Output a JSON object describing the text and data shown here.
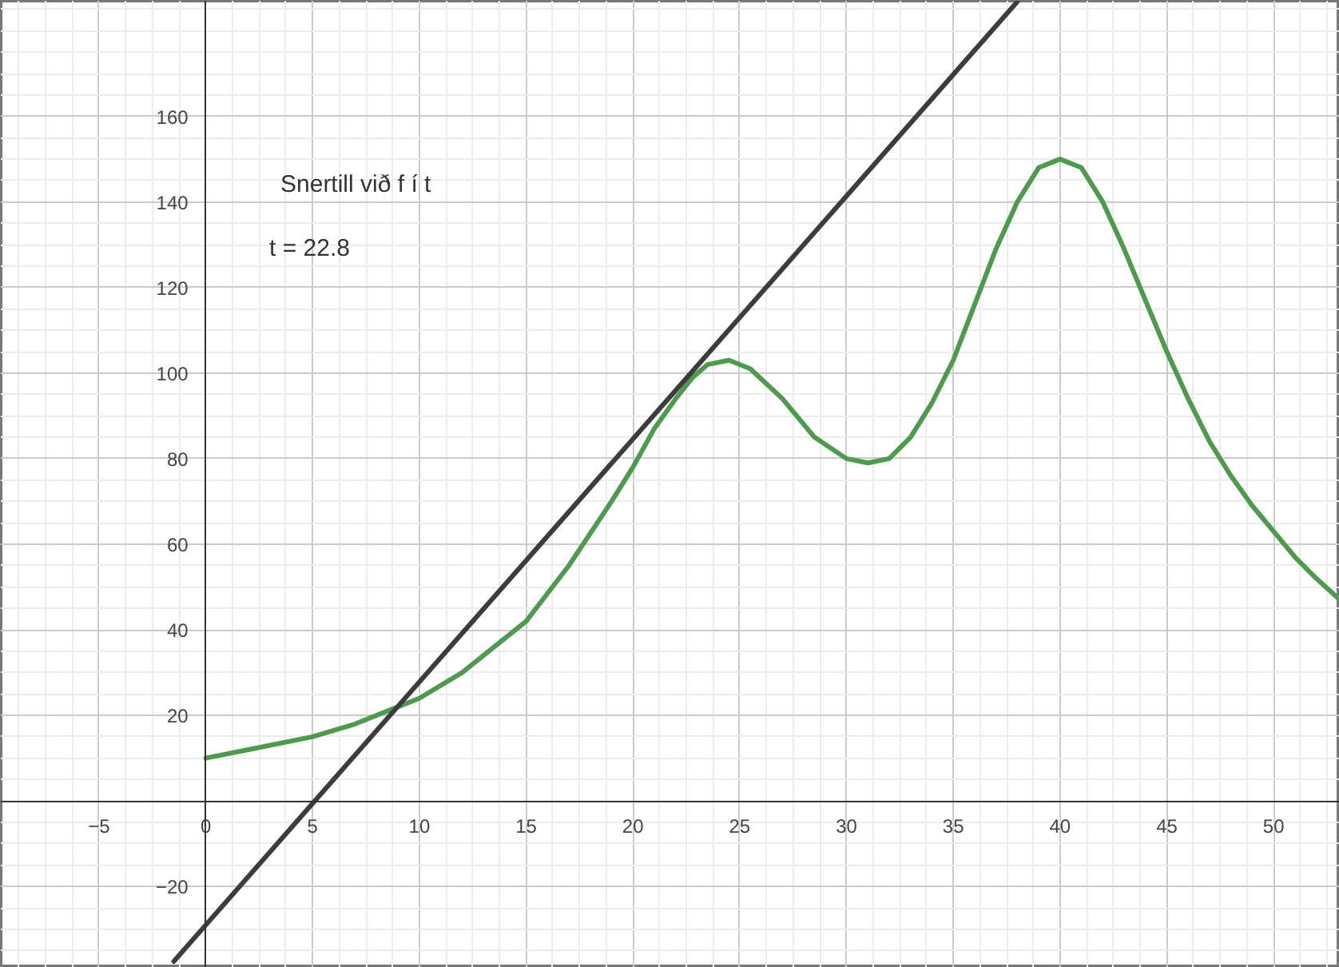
{
  "chart_data": {
    "type": "line",
    "xlim": [
      -9.6,
      53.1
    ],
    "ylim": [
      -39,
      187
    ],
    "xticks": [
      {
        "value": -5,
        "label": "−5"
      },
      0,
      5,
      10,
      15,
      20,
      25,
      30,
      35,
      40,
      45,
      50
    ],
    "yticks": [
      {
        "value": -20,
        "label": "−20"
      },
      20,
      40,
      60,
      80,
      100,
      120,
      140,
      160
    ],
    "grid": true,
    "annotations": [
      "Snertill við f í t",
      "t = 22.8"
    ],
    "series": [
      {
        "color": "#4f9a4f",
        "x": [
          0,
          2,
          5,
          7,
          9,
          10,
          12,
          15,
          17,
          19,
          20,
          21,
          22,
          22.8,
          23.5,
          24.5,
          25.5,
          27,
          28.5,
          30,
          31,
          32,
          33,
          34,
          35,
          36,
          37,
          38,
          39,
          40,
          41,
          42,
          43,
          44,
          45,
          46,
          47,
          48,
          49,
          50,
          51,
          52,
          53.1
        ],
        "values": [
          10,
          12,
          15,
          18,
          22,
          24,
          30,
          42,
          55,
          70,
          78,
          87,
          94,
          99,
          102,
          103,
          101,
          94,
          85,
          80,
          79,
          80,
          85,
          93,
          103,
          116,
          129,
          140,
          148,
          150,
          148,
          140,
          129,
          117,
          105,
          94,
          84,
          76,
          69,
          63,
          57,
          52,
          47
        ]
      },
      {
        "color": "#3c3c3c",
        "x": [
          -1.5,
          38
        ],
        "values": [
          -37.5,
          186.8
        ]
      }
    ]
  }
}
